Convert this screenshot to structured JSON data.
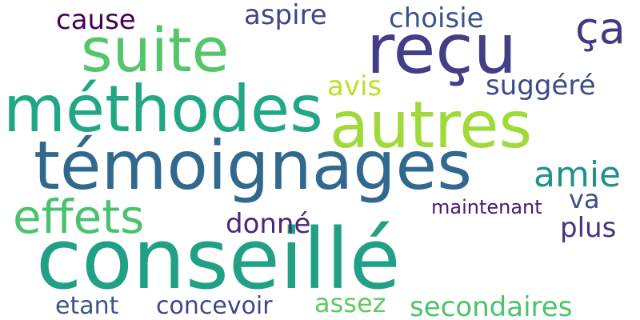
{
  "words": [
    {
      "text": "conseillé",
      "color": "#21a085"
    },
    {
      "text": "témoignages",
      "color": "#31688e"
    },
    {
      "text": "méthodes",
      "color": "#22a785"
    },
    {
      "text": "autres",
      "color": "#9fda3a"
    },
    {
      "text": "reçu",
      "color": "#433e85"
    },
    {
      "text": "suite",
      "color": "#54c568"
    },
    {
      "text": "effets",
      "color": "#4ac16d"
    },
    {
      "text": "ça",
      "color": "#453882"
    },
    {
      "text": "amie",
      "color": "#21918c"
    },
    {
      "text": "cause",
      "color": "#440154"
    },
    {
      "text": "aspire",
      "color": "#414487"
    },
    {
      "text": "choisie",
      "color": "#3b528b"
    },
    {
      "text": "avis",
      "color": "#bddf26"
    },
    {
      "text": "suggéré",
      "color": "#3e4989"
    },
    {
      "text": "donné",
      "color": "#482878"
    },
    {
      "text": "plus",
      "color": "#46337e"
    },
    {
      "text": "va",
      "color": "#3d4e8a"
    },
    {
      "text": "maintenant",
      "color": "#481a6c"
    },
    {
      "text": "etant",
      "color": "#3b528b"
    },
    {
      "text": "concevoir",
      "color": "#3f4788"
    },
    {
      "text": "assez",
      "color": "#5ec962"
    },
    {
      "text": "secondaires",
      "color": "#4cc26c"
    }
  ]
}
